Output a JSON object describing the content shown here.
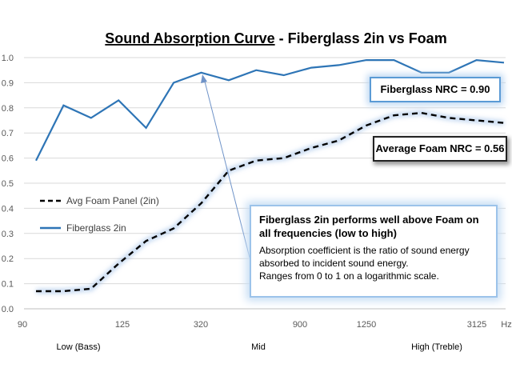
{
  "chart_data": {
    "type": "line",
    "title": "Sound Absorption Curve",
    "title_suffix": " - Fiberglass 2in vs Foam",
    "x_ticks": [
      "90",
      "125",
      "320",
      "900",
      "1250",
      "3125",
      "Hz"
    ],
    "x_band_labels": [
      "Low (Bass)",
      "Mid",
      "High (Treble)"
    ],
    "y_ticks": [
      "0.0",
      "0.1",
      "0.2",
      "0.3",
      "0.4",
      "0.5",
      "0.6",
      "0.7",
      "0.8",
      "0.9",
      "1.0"
    ],
    "ylim": [
      0,
      1
    ],
    "grid": true,
    "legend_position": "left-middle",
    "series": [
      {
        "name": "Fiberglass 2in",
        "color": "#2e75b6",
        "style": "solid",
        "values": [
          0.59,
          0.81,
          0.76,
          0.83,
          0.72,
          0.9,
          0.94,
          0.91,
          0.95,
          0.93,
          0.96,
          0.97,
          0.99,
          0.99,
          0.94,
          0.94,
          0.99,
          0.98
        ]
      },
      {
        "name": "Avg Foam Panel (2in)",
        "color": "#000000",
        "style": "dashed",
        "values": [
          0.07,
          0.07,
          0.08,
          0.18,
          0.27,
          0.32,
          0.42,
          0.55,
          0.59,
          0.6,
          0.64,
          0.67,
          0.73,
          0.77,
          0.78,
          0.76,
          0.75,
          0.74
        ]
      }
    ],
    "annotations": {
      "fiberglass_nrc": "Fiberglass NRC = 0.90",
      "foam_nrc": "Average Foam NRC = 0.56",
      "callout_heading": "Fiberglass 2in performs well above Foam on all frequencies (low to high)",
      "callout_lines": [
        "Absorption coefficient is the ratio of sound energy absorbed to incident sound energy.",
        "Ranges from 0 to 1 on a logarithmic scale."
      ]
    }
  }
}
